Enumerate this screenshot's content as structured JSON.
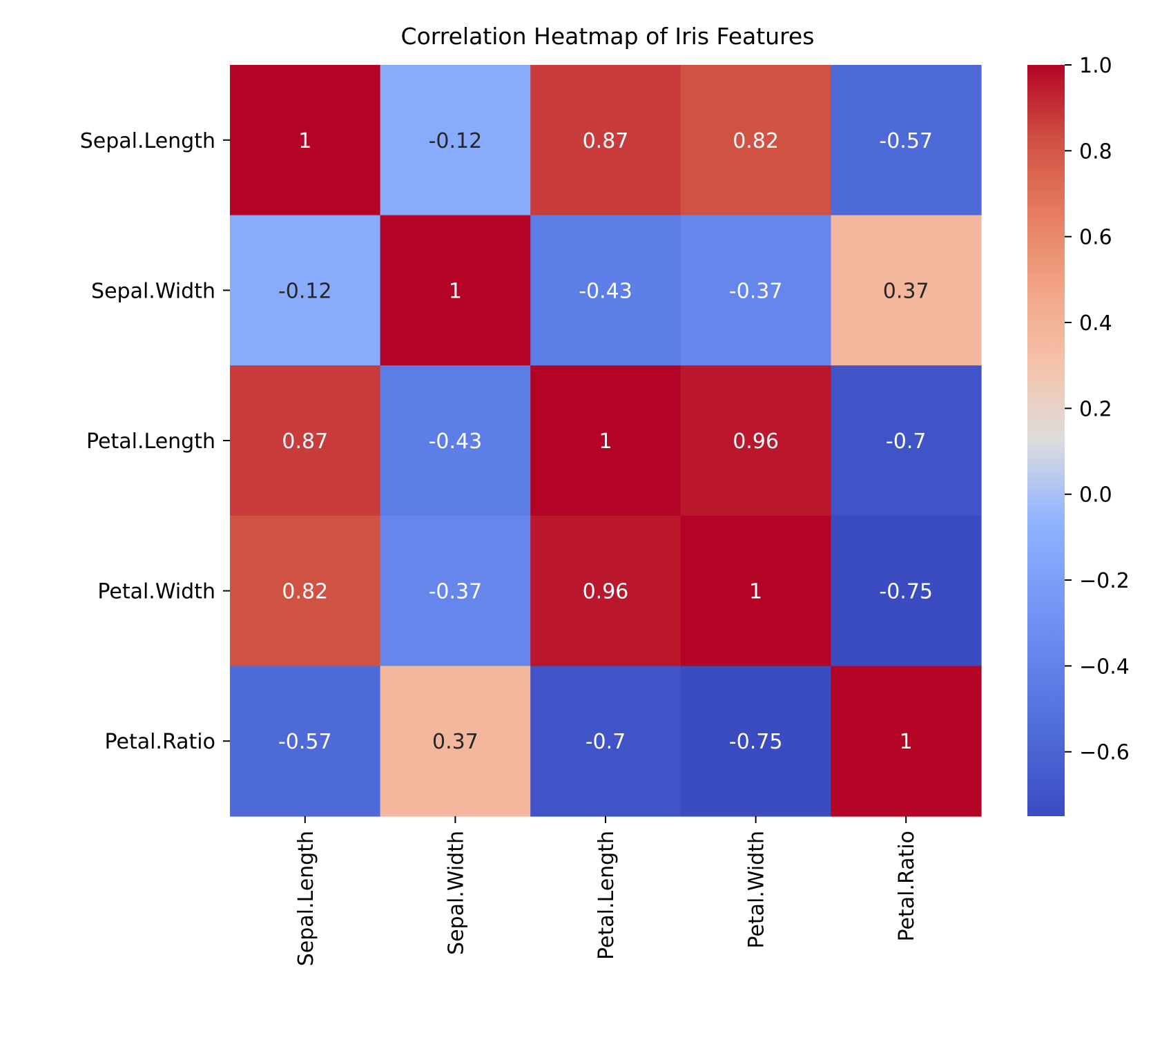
{
  "chart_data": {
    "type": "heatmap",
    "title": "Correlation Heatmap of Iris Features",
    "rows": [
      "Sepal.Length",
      "Sepal.Width",
      "Petal.Length",
      "Petal.Width",
      "Petal.Ratio"
    ],
    "columns": [
      "Sepal.Length",
      "Sepal.Width",
      "Petal.Length",
      "Petal.Width",
      "Petal.Ratio"
    ],
    "values": [
      [
        1,
        -0.12,
        0.87,
        0.82,
        -0.57
      ],
      [
        -0.12,
        1,
        -0.43,
        -0.37,
        0.37
      ],
      [
        0.87,
        -0.43,
        1,
        0.96,
        -0.7
      ],
      [
        0.82,
        -0.37,
        0.96,
        1,
        -0.75
      ],
      [
        -0.57,
        0.37,
        -0.7,
        -0.75,
        1
      ]
    ],
    "cell_labels": [
      [
        "1",
        "-0.12",
        "0.87",
        "0.82",
        "-0.57"
      ],
      [
        "-0.12",
        "1",
        "-0.43",
        "-0.37",
        "0.37"
      ],
      [
        "0.87",
        "-0.43",
        "1",
        "0.96",
        "-0.7"
      ],
      [
        "0.82",
        "-0.37",
        "0.96",
        "1",
        "-0.75"
      ],
      [
        "-0.57",
        "0.37",
        "-0.7",
        "-0.75",
        "1"
      ]
    ],
    "colormap": "coolwarm",
    "colorbar": {
      "range": [
        -0.75,
        1.0
      ],
      "ticks": [
        1.0,
        0.8,
        0.6,
        0.4,
        0.2,
        0.0,
        -0.2,
        -0.4,
        -0.6
      ],
      "tick_labels": [
        "1.0",
        "0.8",
        "0.6",
        "0.4",
        "0.2",
        "0.0",
        "−0.2",
        "−0.4",
        "−0.6"
      ]
    },
    "grid": false
  }
}
